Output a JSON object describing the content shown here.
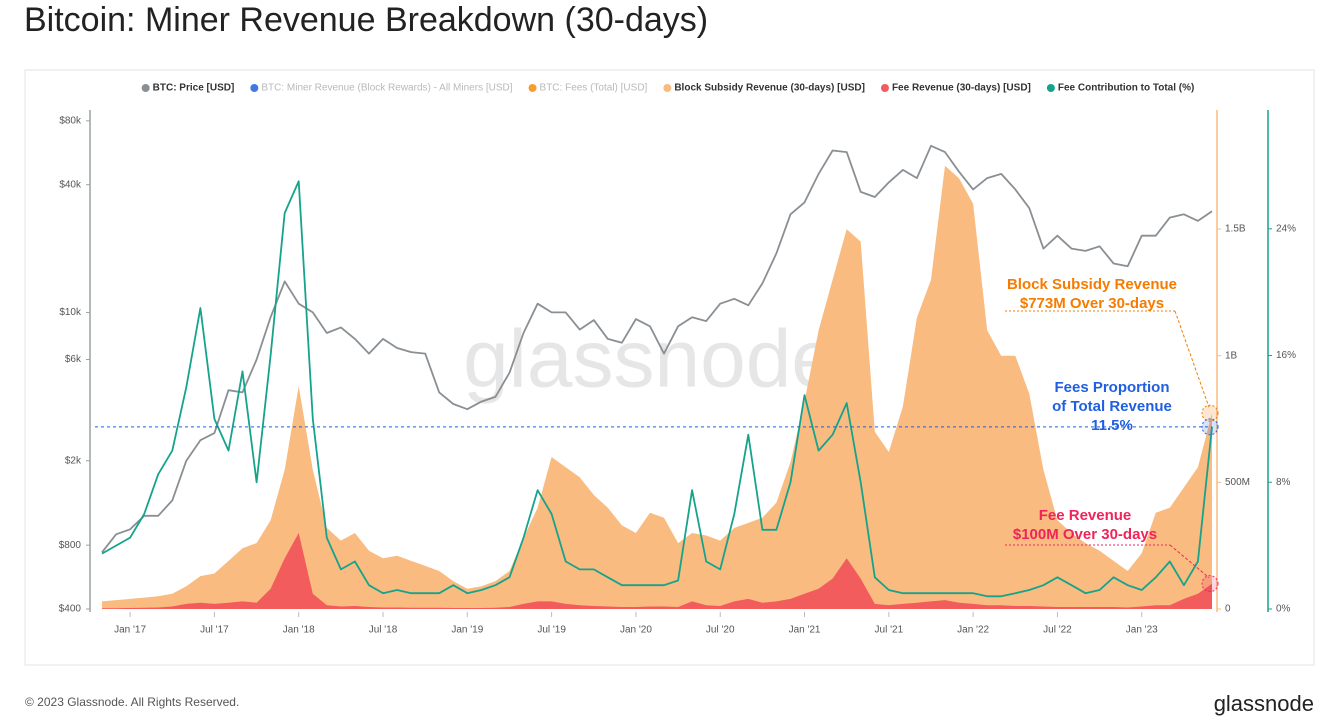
{
  "chart_data": {
    "type": "line",
    "title": "Bitcoin: Miner Revenue Breakdown (30-days)",
    "watermark": "glassnode",
    "copyright": "© 2023 Glassnode. All Rights Reserved.",
    "logo": "glassnode",
    "x": [
      "2016-11",
      "2016-12",
      "2017-01",
      "2017-02",
      "2017-03",
      "2017-04",
      "2017-05",
      "2017-06",
      "2017-07",
      "2017-08",
      "2017-09",
      "2017-10",
      "2017-11",
      "2017-12",
      "2018-01",
      "2018-02",
      "2018-03",
      "2018-04",
      "2018-05",
      "2018-06",
      "2018-07",
      "2018-08",
      "2018-09",
      "2018-10",
      "2018-11",
      "2018-12",
      "2019-01",
      "2019-02",
      "2019-03",
      "2019-04",
      "2019-05",
      "2019-06",
      "2019-07",
      "2019-08",
      "2019-09",
      "2019-10",
      "2019-11",
      "2019-12",
      "2020-01",
      "2020-02",
      "2020-03",
      "2020-04",
      "2020-05",
      "2020-06",
      "2020-07",
      "2020-08",
      "2020-09",
      "2020-10",
      "2020-11",
      "2020-12",
      "2021-01",
      "2021-02",
      "2021-03",
      "2021-04",
      "2021-05",
      "2021-06",
      "2021-07",
      "2021-08",
      "2021-09",
      "2021-10",
      "2021-11",
      "2021-12",
      "2022-01",
      "2022-02",
      "2022-03",
      "2022-04",
      "2022-05",
      "2022-06",
      "2022-07",
      "2022-08",
      "2022-09",
      "2022-10",
      "2022-11",
      "2022-12",
      "2023-01",
      "2023-02",
      "2023-03",
      "2023-04",
      "2023-05",
      "2023-06"
    ],
    "xlim": [
      "2016-11",
      "2023-06"
    ],
    "xticks": [
      {
        "value": "2017-01",
        "label": "Jan '17"
      },
      {
        "value": "2017-07",
        "label": "Jul '17"
      },
      {
        "value": "2018-01",
        "label": "Jan '18"
      },
      {
        "value": "2018-07",
        "label": "Jul '18"
      },
      {
        "value": "2019-01",
        "label": "Jan '19"
      },
      {
        "value": "2019-07",
        "label": "Jul '19"
      },
      {
        "value": "2020-01",
        "label": "Jan '20"
      },
      {
        "value": "2020-07",
        "label": "Jul '20"
      },
      {
        "value": "2021-01",
        "label": "Jan '21"
      },
      {
        "value": "2021-07",
        "label": "Jul '21"
      },
      {
        "value": "2022-01",
        "label": "Jan '22"
      },
      {
        "value": "2022-07",
        "label": "Jul '22"
      },
      {
        "value": "2023-01",
        "label": "Jan '23"
      }
    ],
    "ylim": [
      400,
      90000
    ],
    "ylog": true,
    "yticks": [
      {
        "value": 400,
        "label": "$400"
      },
      {
        "value": 800,
        "label": "$800"
      },
      {
        "value": 2000,
        "label": "$2k"
      },
      {
        "value": 6000,
        "label": "$6k"
      },
      {
        "value": 10000,
        "label": "$10k"
      },
      {
        "value": 40000,
        "label": "$40k"
      },
      {
        "value": 80000,
        "label": "$80k"
      }
    ],
    "y2lim": [
      0,
      1970000000
    ],
    "y2ticks": [
      0,
      {
        "value": 500000000,
        "label": "500M"
      },
      {
        "value": 1000000000,
        "label": "1B"
      },
      {
        "value": 1500000000,
        "label": "1.5B"
      }
    ],
    "y3lim": [
      0,
      31.5
    ],
    "y3ticks": [
      {
        "value": 0,
        "label": "0%"
      },
      {
        "value": 8,
        "label": "8%"
      },
      {
        "value": 16,
        "label": "16%"
      },
      {
        "value": 24,
        "label": "24%"
      }
    ],
    "grid": false,
    "legend": "top",
    "series": [
      {
        "name": "BTC: Price [USD]",
        "color": "#8a8f93",
        "type": "line",
        "axis": "y",
        "values": [
          740,
          900,
          950,
          1100,
          1100,
          1300,
          2000,
          2500,
          2700,
          4300,
          4200,
          6000,
          9500,
          14000,
          11000,
          10000,
          8000,
          8500,
          7500,
          6400,
          7500,
          6800,
          6500,
          6400,
          4200,
          3700,
          3500,
          3800,
          4000,
          5200,
          8000,
          11000,
          10000,
          10000,
          8300,
          9200,
          7500,
          7200,
          9300,
          8600,
          6400,
          8600,
          9500,
          9100,
          11000,
          11600,
          10800,
          13700,
          19000,
          29000,
          33000,
          45000,
          58000,
          57000,
          37000,
          35000,
          41000,
          47000,
          43000,
          61000,
          57000,
          46000,
          38000,
          43000,
          45000,
          38000,
          31000,
          20000,
          23000,
          20000,
          19500,
          20500,
          17000,
          16500,
          23000,
          23000,
          28000,
          29000,
          27000,
          30000
        ]
      },
      {
        "name": "BTC: Miner Revenue (Block Rewards) - All Miners [USD]",
        "color": "#2a6bdb",
        "hidden": true
      },
      {
        "name": "BTC: Fees (Total) [USD]",
        "color": "#f7931a",
        "hidden": true
      },
      {
        "name": "Block Subsidy Revenue (30-days) [USD]",
        "color": "#f9bb80",
        "type": "area",
        "axis": "y2",
        "values": [
          30000000,
          35000000,
          40000000,
          45000000,
          50000000,
          60000000,
          90000000,
          130000000,
          140000000,
          190000000,
          240000000,
          260000000,
          350000000,
          550000000,
          880000000,
          550000000,
          320000000,
          270000000,
          300000000,
          230000000,
          200000000,
          210000000,
          190000000,
          170000000,
          150000000,
          110000000,
          80000000,
          90000000,
          110000000,
          150000000,
          280000000,
          400000000,
          600000000,
          560000000,
          520000000,
          450000000,
          400000000,
          330000000,
          300000000,
          380000000,
          360000000,
          260000000,
          300000000,
          290000000,
          270000000,
          320000000,
          340000000,
          360000000,
          420000000,
          580000000,
          820000000,
          1100000000,
          1300000000,
          1500000000,
          1450000000,
          700000000,
          620000000,
          800000000,
          1150000000,
          1300000000,
          1750000000,
          1700000000,
          1600000000,
          1100000000,
          1000000000,
          1000000000,
          850000000,
          550000000,
          350000000,
          300000000,
          260000000,
          230000000,
          190000000,
          150000000,
          220000000,
          380000000,
          400000000,
          480000000,
          560000000,
          773000000
        ]
      },
      {
        "name": "Fee Revenue (30-days) [USD]",
        "color": "#f25c5c",
        "type": "area",
        "axis": "y2",
        "values": [
          3000000,
          3000000,
          4000000,
          5000000,
          6000000,
          10000000,
          20000000,
          25000000,
          20000000,
          25000000,
          30000000,
          25000000,
          80000000,
          200000000,
          300000000,
          60000000,
          15000000,
          10000000,
          12000000,
          8000000,
          6000000,
          6000000,
          5000000,
          5000000,
          5000000,
          4000000,
          4000000,
          4000000,
          5000000,
          8000000,
          20000000,
          30000000,
          30000000,
          20000000,
          15000000,
          12000000,
          10000000,
          8000000,
          8000000,
          10000000,
          10000000,
          8000000,
          30000000,
          15000000,
          12000000,
          30000000,
          40000000,
          25000000,
          30000000,
          40000000,
          60000000,
          80000000,
          120000000,
          200000000,
          120000000,
          20000000,
          15000000,
          20000000,
          25000000,
          30000000,
          35000000,
          25000000,
          20000000,
          15000000,
          15000000,
          12000000,
          12000000,
          10000000,
          8000000,
          8000000,
          8000000,
          8000000,
          8000000,
          6000000,
          10000000,
          15000000,
          15000000,
          40000000,
          60000000,
          100000000
        ]
      },
      {
        "name": "Fee Contribution to Total (%)",
        "color": "#16a38b",
        "type": "line",
        "axis": "y3",
        "values": [
          3.5,
          4,
          4.5,
          6,
          8.5,
          10,
          14,
          19,
          12,
          10,
          15,
          8,
          16,
          25,
          27,
          12,
          4.5,
          2.5,
          3,
          1.5,
          1,
          1.2,
          1,
          1,
          1,
          1.5,
          1,
          1.2,
          1.5,
          2,
          4.5,
          7.5,
          6,
          3,
          2.5,
          2.5,
          2,
          1.5,
          1.5,
          1.5,
          1.5,
          1.8,
          7.5,
          3,
          2.5,
          6,
          11,
          5,
          5,
          8,
          13.5,
          10,
          11,
          13,
          8,
          2,
          1.2,
          1,
          1,
          1,
          1,
          1,
          1,
          0.8,
          0.8,
          1,
          1.2,
          1.5,
          2,
          1.5,
          1,
          1.2,
          2,
          1.5,
          1.2,
          2,
          3,
          1.5,
          3,
          11.5
        ]
      }
    ],
    "annotations": [
      {
        "lines": [
          "Block Subsidy Revenue",
          "$773M Over 30-days"
        ],
        "color": "#f57c00"
      },
      {
        "lines": [
          "Fees Proportion",
          "of Total Revenue",
          "11.5%"
        ],
        "color": "#1f5fe0"
      },
      {
        "lines": [
          "Fee Revenue",
          "$100M Over 30-days"
        ],
        "color": "#f0245a"
      }
    ]
  }
}
